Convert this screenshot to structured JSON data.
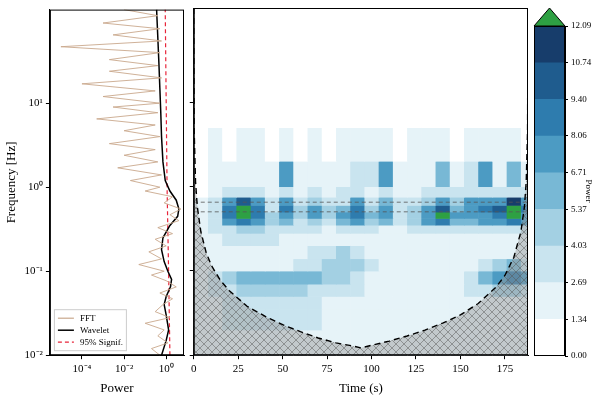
{
  "chart_data": [
    {
      "type": "line",
      "xlabel": "Power",
      "ylabel": "Frequency [Hz]",
      "log": true,
      "grid": false,
      "legend": "lower left",
      "xlim": [
        3e-06,
        7
      ],
      "xticks": [
        {
          "value": 0.0001,
          "label": "10⁻⁴"
        },
        {
          "value": 0.01,
          "label": "10⁻²"
        },
        {
          "value": 1,
          "label": "10⁰"
        }
      ],
      "ylim": [
        0.01,
        130
      ],
      "yticks": [
        {
          "value": 0.01,
          "label": "10⁻²"
        },
        {
          "value": 0.1,
          "label": "10⁻¹"
        },
        {
          "value": 1,
          "label": "10⁰"
        },
        {
          "value": 10,
          "label": "10¹"
        }
      ],
      "series": [
        {
          "name": "FFT",
          "color": "#c9a88c",
          "line_style": "solid",
          "x": [
            0.5,
            0.2,
            1.2,
            0.4,
            0.8,
            0.1,
            1.5,
            0.3,
            0.7,
            2,
            0.5,
            3,
            1,
            0.2,
            0.8,
            0.05,
            0.6,
            0.15,
            1,
            0.3,
            2,
            0.4,
            4,
            1.5,
            5,
            0.8,
            2,
            0.1,
            0.5,
            0.02,
            0.6,
            0.005,
            0.4,
            0.01,
            0.3,
            0.002,
            0.5,
            0.01,
            0.3,
            0.0005,
            0.4,
            0.003,
            0.5,
            0.001,
            0.3,
            0.0001,
            0.6,
            0.002,
            0.4,
            0.002,
            0.5,
            1e-05,
            0.6,
            0.003,
            0.5,
            0.001,
            0.4,
            0.01
          ],
          "y": [
            0.01,
            0.012,
            0.014,
            0.017,
            0.02,
            0.024,
            0.028,
            0.033,
            0.04,
            0.047,
            0.055,
            0.065,
            0.077,
            0.09,
            0.1,
            0.12,
            0.14,
            0.17,
            0.2,
            0.24,
            0.28,
            0.33,
            0.4,
            0.47,
            0.55,
            0.65,
            0.77,
            0.9,
            1,
            1.2,
            1.4,
            1.7,
            2,
            2.4,
            2.8,
            3.3,
            4,
            4.7,
            5.5,
            6.5,
            7.7,
            9,
            10,
            12,
            14,
            17,
            20,
            24,
            28,
            33,
            40,
            47,
            55,
            65,
            77,
            90,
            110,
            130
          ]
        },
        {
          "name": "Wavelet",
          "color": "#000000",
          "line_style": "solid",
          "x": [
            0.6,
            1,
            1.3,
            1,
            0.8,
            1,
            1.6,
            1.8,
            1.2,
            0.8,
            0.6,
            0.7,
            1.5,
            3.5,
            4,
            3,
            1.5,
            0.9,
            0.7,
            0.6,
            0.55,
            0.5,
            0.45,
            0.4,
            0.35
          ],
          "y": [
            0.01,
            0.015,
            0.02,
            0.03,
            0.04,
            0.05,
            0.065,
            0.08,
            0.1,
            0.13,
            0.18,
            0.25,
            0.35,
            0.45,
            0.55,
            0.7,
            0.9,
            1.2,
            2,
            4,
            8,
            15,
            30,
            60,
            130
          ]
        },
        {
          "name": "95% Signif.",
          "color": "#e8253a",
          "line_style": "dashed",
          "x": [
            1.5,
            1.3,
            1.1,
            1,
            0.9
          ],
          "y": [
            0.01,
            0.1,
            1,
            10,
            130
          ]
        }
      ]
    },
    {
      "type": "heatmap",
      "xlabel": "Time (s)",
      "log": "y",
      "tick_labels": "x",
      "xlim": [
        0,
        188
      ],
      "xticks": [
        0,
        25,
        50,
        75,
        100,
        125,
        150,
        175
      ],
      "ylim": [
        0.01,
        130
      ],
      "yticks": [
        0.01,
        0.1,
        1,
        10
      ],
      "time_bins": [
        0,
        8,
        16,
        24,
        32,
        40,
        48,
        56,
        64,
        72,
        80,
        88,
        96,
        104,
        112,
        120,
        128,
        136,
        144,
        152,
        160,
        168,
        176,
        184,
        188
      ],
      "freq_bins": [
        0.01,
        0.02,
        0.035,
        0.05,
        0.07,
        0.1,
        0.14,
        0.2,
        0.28,
        0.35,
        0.42,
        0.5,
        0.6,
        0.75,
        1,
        2,
        5,
        20,
        130
      ],
      "cells": [
        [
          1.5,
          2,
          2,
          2.5,
          2.5,
          2.5,
          2,
          2,
          2,
          2,
          2,
          2,
          2,
          2,
          2,
          2.5,
          2.5,
          2.5,
          2,
          2,
          2,
          2,
          1.5,
          1.5
        ],
        [
          2,
          2.5,
          3,
          3,
          3,
          3,
          3,
          3,
          3,
          2.5,
          2.5,
          2.5,
          2.5,
          2.5,
          2.5,
          2.5,
          2.5,
          2.5,
          2.5,
          2.5,
          2.5,
          2,
          2,
          2
        ],
        [
          2,
          2.5,
          3,
          3,
          3.5,
          3.5,
          3,
          3,
          3,
          2.5,
          2,
          2,
          2,
          2,
          2,
          2,
          2,
          2,
          2,
          2,
          2,
          2,
          2,
          2
        ],
        [
          2,
          3,
          4,
          4.5,
          4.5,
          4.5,
          4.5,
          4.5,
          4,
          4,
          4,
          3,
          2,
          1.5,
          1.5,
          1.5,
          1.5,
          1.5,
          2,
          3,
          4,
          5,
          5,
          4
        ],
        [
          2,
          3.5,
          5,
          5.5,
          6,
          6,
          6,
          6,
          5.5,
          5,
          5,
          4,
          2.5,
          2,
          1.5,
          1.5,
          1.5,
          2,
          2.5,
          4,
          6,
          8,
          8.5,
          7
        ],
        [
          2,
          2,
          2.5,
          2.5,
          2.5,
          2.5,
          2.5,
          3,
          3.5,
          4.5,
          5,
          4.5,
          3,
          2,
          1.5,
          1.5,
          1.5,
          2,
          2,
          2.5,
          3.5,
          5,
          5.5,
          4
        ],
        [
          1.5,
          1.5,
          2,
          2,
          2,
          2,
          2,
          2.5,
          3,
          4,
          4.5,
          4,
          2.5,
          2,
          1.5,
          1.5,
          1.5,
          1.5,
          1.5,
          2,
          2,
          2.5,
          2.5,
          2
        ],
        [
          1.5,
          2,
          3,
          3.5,
          3.5,
          3,
          2.5,
          2,
          2,
          2,
          2,
          2,
          2,
          2,
          2,
          2,
          2,
          2,
          2,
          2,
          2,
          2,
          2,
          2
        ],
        [
          2,
          3,
          4,
          4.5,
          4.5,
          4,
          3,
          3,
          3,
          2.5,
          3,
          3,
          3,
          2.5,
          2.5,
          3,
          3,
          3.5,
          3,
          3,
          3,
          3,
          3.5,
          3
        ],
        [
          2,
          4,
          7,
          9,
          8,
          5,
          6,
          4,
          5,
          4,
          6,
          7,
          5,
          6,
          4,
          5,
          7,
          9,
          6,
          6,
          7,
          8,
          9,
          7
        ],
        [
          2,
          4,
          9,
          12.5,
          9,
          5,
          8,
          5,
          7,
          5,
          7,
          9,
          6,
          8,
          4,
          5,
          8,
          12.5,
          7,
          7,
          8,
          9,
          12.5,
          8
        ],
        [
          2,
          3.5,
          9,
          13,
          9,
          4,
          9,
          5,
          7,
          5,
          6,
          9,
          5,
          8,
          4,
          5,
          7,
          10,
          6,
          8,
          9,
          10,
          13,
          9
        ],
        [
          1.5,
          3,
          7,
          10,
          7,
          3,
          7,
          4,
          5,
          3,
          4,
          7,
          4,
          6,
          3,
          4,
          5,
          7,
          5,
          7,
          7,
          8,
          11,
          7
        ],
        [
          1,
          2,
          3,
          4,
          3,
          2,
          3,
          2,
          3,
          2,
          3,
          4,
          2,
          3,
          2,
          2,
          3,
          4,
          3,
          4,
          3,
          4,
          4,
          3
        ],
        [
          1,
          1.5,
          2,
          2.5,
          2,
          2,
          7,
          2,
          2.5,
          2,
          2,
          3,
          3,
          7,
          2,
          2,
          2.5,
          6,
          2.5,
          3,
          7,
          2.5,
          6,
          2
        ],
        [
          1,
          1.5,
          1,
          1.5,
          1.5,
          1,
          1.5,
          1,
          2,
          1,
          1.5,
          1.5,
          2,
          1.5,
          1,
          2,
          1.5,
          1.5,
          1,
          2,
          1.5,
          1.5,
          2,
          1
        ],
        [
          0.5,
          1,
          0.5,
          1,
          0.5,
          1,
          0.5,
          1,
          0.5,
          1,
          0.5,
          1,
          0.5,
          1,
          0.5,
          1,
          0.5,
          1,
          0.5,
          1,
          0.5,
          1,
          0.5,
          1
        ],
        [
          0.5,
          0.5,
          0.5,
          0.5,
          0.5,
          0.5,
          0.5,
          0.5,
          0.5,
          0.5,
          0.5,
          0.5,
          0.5,
          0.5,
          0.5,
          0.5,
          0.5,
          0.5,
          0.5,
          0.5,
          0.5,
          0.5,
          0.5,
          0.5
        ]
      ],
      "cone": {
        "color": "#000000",
        "line_style": "dashed",
        "x": [
          0,
          0.25,
          1,
          2,
          4,
          7,
          10,
          15,
          20,
          30,
          40,
          50,
          60,
          70,
          80,
          90,
          94,
          100,
          110,
          120,
          130,
          140,
          150,
          160,
          170,
          175,
          180,
          184,
          186,
          187,
          187.75,
          188
        ],
        "y": [
          130,
          4.6,
          1.15,
          0.575,
          0.29,
          0.164,
          0.115,
          0.077,
          0.058,
          0.038,
          0.029,
          0.023,
          0.019,
          0.016,
          0.014,
          0.0128,
          0.0122,
          0.0131,
          0.0147,
          0.0169,
          0.0198,
          0.024,
          0.03,
          0.041,
          0.064,
          0.088,
          0.144,
          0.29,
          0.575,
          1.15,
          4.6,
          130
        ]
      },
      "hlines": [
        0.65,
        0.5
      ],
      "colorbar": {
        "label": "Power",
        "range": [
          0,
          12.09
        ],
        "ticks": [
          {
            "value": 0,
            "label": "0.00"
          },
          1.34,
          2.69,
          4.03,
          5.37,
          6.71,
          8.06,
          {
            "value": 9.4,
            "label": "9.40"
          },
          10.74,
          12.09
        ],
        "colors": [
          "#ffffff",
          "#e6f3f8",
          "#c9e4ef",
          "#a3d0e3",
          "#78b8d5",
          "#4c9bc3",
          "#2e7cae",
          "#1f5c8e",
          "#173d6b",
          "#2ea043"
        ]
      }
    }
  ]
}
